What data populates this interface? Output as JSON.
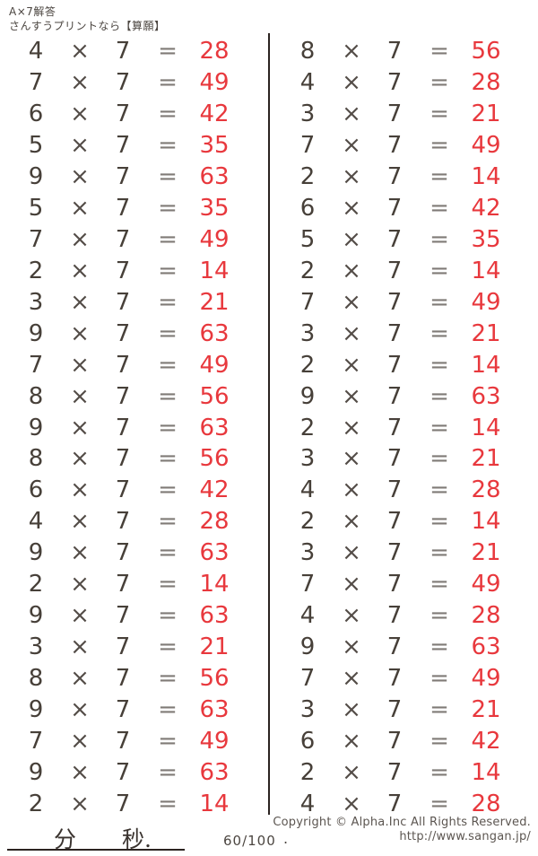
{
  "header": {
    "title": "A×7解答",
    "subtitle": "さんすうプリントなら【算願】"
  },
  "problems": {
    "multiplier": "7",
    "times_symbol": "×",
    "equals_symbol": "=",
    "left_column": [
      {
        "a": "4",
        "answer": "28"
      },
      {
        "a": "7",
        "answer": "49"
      },
      {
        "a": "6",
        "answer": "42"
      },
      {
        "a": "5",
        "answer": "35"
      },
      {
        "a": "9",
        "answer": "63"
      },
      {
        "a": "5",
        "answer": "35"
      },
      {
        "a": "7",
        "answer": "49"
      },
      {
        "a": "2",
        "answer": "14"
      },
      {
        "a": "3",
        "answer": "21"
      },
      {
        "a": "9",
        "answer": "63"
      },
      {
        "a": "7",
        "answer": "49"
      },
      {
        "a": "8",
        "answer": "56"
      },
      {
        "a": "9",
        "answer": "63"
      },
      {
        "a": "8",
        "answer": "56"
      },
      {
        "a": "6",
        "answer": "42"
      },
      {
        "a": "4",
        "answer": "28"
      },
      {
        "a": "9",
        "answer": "63"
      },
      {
        "a": "2",
        "answer": "14"
      },
      {
        "a": "9",
        "answer": "63"
      },
      {
        "a": "3",
        "answer": "21"
      },
      {
        "a": "8",
        "answer": "56"
      },
      {
        "a": "9",
        "answer": "63"
      },
      {
        "a": "7",
        "answer": "49"
      },
      {
        "a": "9",
        "answer": "63"
      },
      {
        "a": "2",
        "answer": "14"
      }
    ],
    "right_column": [
      {
        "a": "8",
        "answer": "56"
      },
      {
        "a": "4",
        "answer": "28"
      },
      {
        "a": "3",
        "answer": "21"
      },
      {
        "a": "7",
        "answer": "49"
      },
      {
        "a": "2",
        "answer": "14"
      },
      {
        "a": "6",
        "answer": "42"
      },
      {
        "a": "5",
        "answer": "35"
      },
      {
        "a": "2",
        "answer": "14"
      },
      {
        "a": "7",
        "answer": "49"
      },
      {
        "a": "3",
        "answer": "21"
      },
      {
        "a": "2",
        "answer": "14"
      },
      {
        "a": "9",
        "answer": "63"
      },
      {
        "a": "2",
        "answer": "14"
      },
      {
        "a": "3",
        "answer": "21"
      },
      {
        "a": "4",
        "answer": "28"
      },
      {
        "a": "2",
        "answer": "14"
      },
      {
        "a": "3",
        "answer": "21"
      },
      {
        "a": "7",
        "answer": "49"
      },
      {
        "a": "4",
        "answer": "28"
      },
      {
        "a": "9",
        "answer": "63"
      },
      {
        "a": "7",
        "answer": "49"
      },
      {
        "a": "3",
        "answer": "21"
      },
      {
        "a": "6",
        "answer": "42"
      },
      {
        "a": "2",
        "answer": "14"
      },
      {
        "a": "4",
        "answer": "28"
      }
    ]
  },
  "footer": {
    "minutes_label": "分",
    "seconds_label": "秒.",
    "score": "60/100",
    "period": ".",
    "copyright_line": "Copyright ©  Alpha.Inc All Rights Reserved.",
    "url_line": "http://www.sangan.jp/"
  },
  "colors": {
    "answer_red": "#e8383d",
    "text_dark": "#474039",
    "divider": "#2b2320"
  }
}
